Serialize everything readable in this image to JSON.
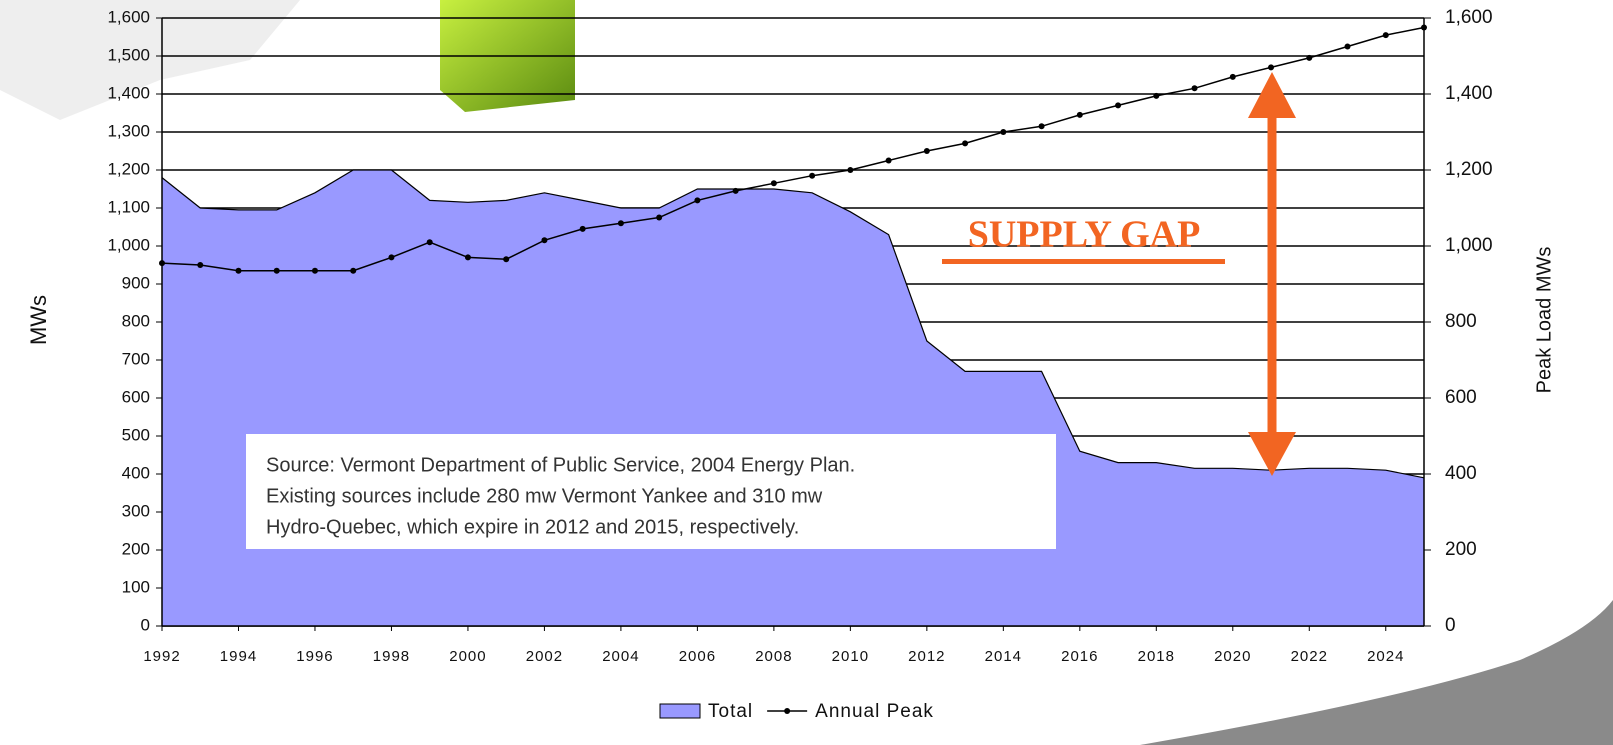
{
  "chart_data": {
    "type": "combo",
    "x": [
      1992,
      1993,
      1994,
      1995,
      1996,
      1997,
      1998,
      1999,
      2000,
      2001,
      2002,
      2003,
      2004,
      2005,
      2006,
      2007,
      2008,
      2009,
      2010,
      2011,
      2012,
      2013,
      2014,
      2015,
      2016,
      2017,
      2018,
      2019,
      2020,
      2021,
      2022,
      2023,
      2024,
      2025
    ],
    "series": [
      {
        "name": "Total",
        "type": "area",
        "color": "#9999ff",
        "values": [
          1180,
          1100,
          1095,
          1095,
          1140,
          1200,
          1200,
          1120,
          1115,
          1120,
          1140,
          1120,
          1100,
          1100,
          1150,
          1150,
          1150,
          1140,
          1090,
          1030,
          750,
          670,
          670,
          670,
          460,
          430,
          430,
          415,
          415,
          410,
          415,
          415,
          410,
          390
        ]
      },
      {
        "name": "Annual Peak",
        "type": "line",
        "axis": "y2",
        "color": "#000000",
        "values": [
          955,
          950,
          935,
          935,
          935,
          935,
          970,
          1010,
          970,
          965,
          1015,
          1045,
          1060,
          1075,
          1120,
          1145,
          1165,
          1185,
          1200,
          1225,
          1250,
          1270,
          1300,
          1315,
          1345,
          1370,
          1395,
          1415,
          1445,
          1470,
          1495,
          1525,
          1555,
          1575
        ]
      }
    ],
    "xlim": [
      1992,
      2025
    ],
    "xticks": [
      1992,
      1994,
      1996,
      1998,
      2000,
      2002,
      2004,
      2006,
      2008,
      2010,
      2012,
      2014,
      2016,
      2018,
      2020,
      2022,
      2024
    ],
    "ylim": [
      0,
      1600
    ],
    "yticks": [
      0,
      100,
      200,
      300,
      400,
      500,
      600,
      700,
      800,
      900,
      {
        "value": 1000,
        "label": "1,000"
      },
      {
        "value": 1100,
        "label": "1,100"
      },
      {
        "value": 1200,
        "label": "1,200"
      },
      {
        "value": 1300,
        "label": "1,300"
      },
      {
        "value": 1400,
        "label": "1,400"
      },
      {
        "value": 1500,
        "label": "1,500"
      },
      {
        "value": 1600,
        "label": "1,600"
      }
    ],
    "y2lim": [
      0,
      1600
    ],
    "y2ticks": [
      0,
      200,
      400,
      600,
      800,
      {
        "value": 1000,
        "label": "1,000"
      },
      {
        "value": 1200,
        "label": "1,200"
      },
      {
        "value": 1400,
        "label": "1,400"
      },
      {
        "value": 1600,
        "label": "1,600"
      }
    ],
    "ylabel": "MWs",
    "y2label": "Peak Load MWs",
    "grid": true,
    "legend": "bottom",
    "annotations": [
      "SUPPLY GAP"
    ],
    "note": [
      "Source:  Vermont Department of Public Service, 2004 Energy Plan.",
      "Existing sources include 280 mw Vermont Yankee and 310 mw",
      "Hydro-Quebec, which expire in 2012 and 2015, respectively."
    ]
  }
}
